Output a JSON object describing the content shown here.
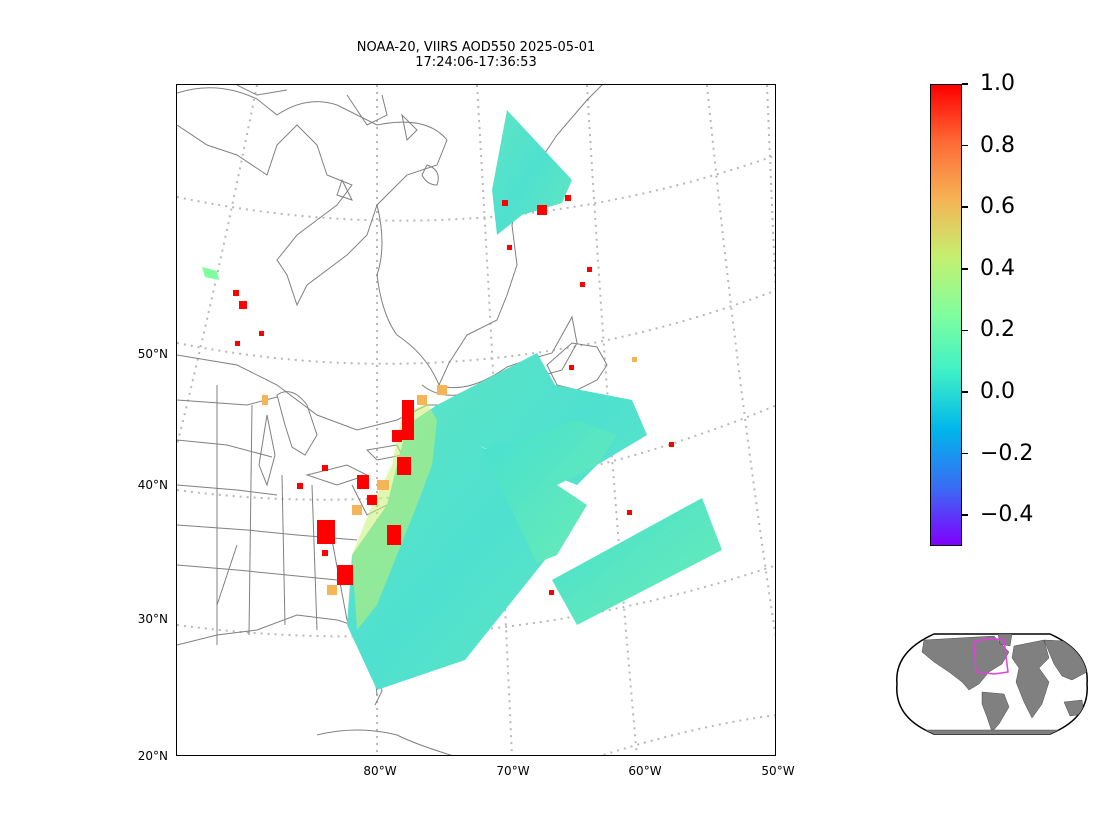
{
  "title": {
    "line1": "NOAA-20, VIIRS AOD550 2025-05-01",
    "line2": "17:24:06-17:36:53"
  },
  "map": {
    "lat_labels": [
      "50°N",
      "40°N",
      "30°N",
      "20°N"
    ],
    "lon_labels": [
      "80°W",
      "70°W",
      "60°W",
      "50°W"
    ],
    "gridlines": "dotted",
    "coastline_color": "#808080",
    "gridline_color": "#b0b0b0",
    "overlay_variable": "AOD550"
  },
  "colorbar": {
    "colormap": "rainbow",
    "vmin": -0.5,
    "vmax": 1.0,
    "ticks": [
      {
        "value": 1.0,
        "label": "1.0"
      },
      {
        "value": 0.8,
        "label": "0.8"
      },
      {
        "value": 0.6,
        "label": "0.6"
      },
      {
        "value": 0.4,
        "label": "0.4"
      },
      {
        "value": 0.2,
        "label": "0.2"
      },
      {
        "value": 0.0,
        "label": "0.0"
      },
      {
        "value": -0.2,
        "label": "−0.2"
      },
      {
        "value": -0.4,
        "label": "−0.4"
      }
    ],
    "colors": [
      "#7f00ff",
      "#3a6cf4",
      "#00b5eb",
      "#3df0c8",
      "#7ffe9e",
      "#c4f070",
      "#f5b456",
      "#ff6a36",
      "#ff0000"
    ]
  },
  "inset": {
    "projection": "Robinson world",
    "land_color": "#808080",
    "highlight_color": "#e040e0"
  }
}
